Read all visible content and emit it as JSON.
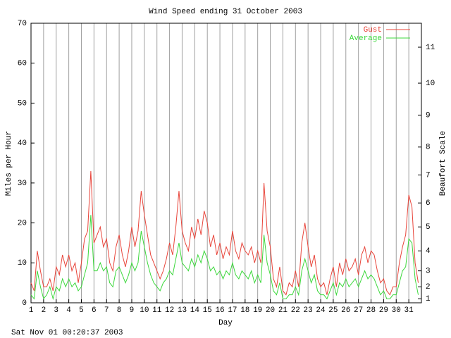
{
  "chart_data": {
    "type": "line",
    "title": "Wind Speed ending 31 October 2003",
    "xlabel": "Day",
    "ylabel": "Miles per Hour",
    "y2label": "Beaufort Scale",
    "footer": "Sat Nov 01 00:20:37 2003",
    "x": [
      1,
      1.25,
      1.5,
      1.75,
      2,
      2.25,
      2.5,
      2.75,
      3,
      3.25,
      3.5,
      3.75,
      4,
      4.25,
      4.5,
      4.75,
      5,
      5.25,
      5.5,
      5.75,
      6,
      6.25,
      6.5,
      6.75,
      7,
      7.25,
      7.5,
      7.75,
      8,
      8.25,
      8.5,
      8.75,
      9,
      9.25,
      9.5,
      9.75,
      10,
      10.25,
      10.5,
      10.75,
      11,
      11.25,
      11.5,
      11.75,
      12,
      12.25,
      12.5,
      12.75,
      13,
      13.25,
      13.5,
      13.75,
      14,
      14.25,
      14.5,
      14.75,
      15,
      15.25,
      15.5,
      15.75,
      16,
      16.25,
      16.5,
      16.75,
      17,
      17.25,
      17.5,
      17.75,
      18,
      18.25,
      18.5,
      18.75,
      19,
      19.25,
      19.5,
      19.75,
      20,
      20.25,
      20.5,
      20.75,
      21,
      21.25,
      21.5,
      21.75,
      22,
      22.25,
      22.5,
      22.75,
      23,
      23.25,
      23.5,
      23.75,
      24,
      24.25,
      24.5,
      24.75,
      25,
      25.25,
      25.5,
      25.75,
      26,
      26.25,
      26.5,
      26.75,
      27,
      27.25,
      27.5,
      27.75,
      28,
      28.25,
      28.5,
      28.75,
      29,
      29.25,
      29.5,
      29.75,
      30,
      30.25,
      30.5,
      30.75,
      31,
      31.25,
      31.5,
      31.75
    ],
    "series": [
      {
        "name": "Gust",
        "color": "#e8443a",
        "values": [
          5,
          3,
          13,
          8,
          4,
          4,
          6,
          3,
          9,
          7,
          12,
          9,
          12,
          8,
          10,
          5,
          10,
          16,
          18,
          33,
          15,
          17,
          19,
          14,
          16,
          10,
          8,
          14,
          17,
          12,
          9,
          13,
          19,
          14,
          18,
          28,
          22,
          17,
          12,
          10,
          8,
          6,
          8,
          11,
          15,
          12,
          19,
          28,
          18,
          15,
          13,
          19,
          16,
          21,
          17,
          23,
          20,
          14,
          17,
          12,
          15,
          11,
          14,
          12,
          18,
          13,
          11,
          15,
          13,
          12,
          14,
          10,
          13,
          10,
          30,
          18,
          14,
          6,
          4,
          9,
          3,
          2,
          5,
          4,
          8,
          4,
          15,
          20,
          14,
          9,
          12,
          6,
          4,
          5,
          2,
          6,
          9,
          4,
          10,
          7,
          11,
          8,
          9,
          11,
          7,
          12,
          14,
          10,
          13,
          12,
          8,
          5,
          6,
          3,
          2,
          4,
          4,
          10,
          14,
          17,
          27,
          24,
          10,
          5
        ]
      },
      {
        "name": "Average",
        "color": "#3cd83c",
        "values": [
          2,
          1,
          8,
          4,
          1,
          2,
          4,
          1,
          4,
          3,
          6,
          4,
          6,
          4,
          5,
          3,
          4,
          7,
          10,
          22,
          8,
          8,
          10,
          8,
          9,
          5,
          4,
          8,
          9,
          7,
          5,
          7,
          10,
          8,
          10,
          18,
          14,
          10,
          7,
          5,
          4,
          3,
          5,
          6,
          8,
          7,
          11,
          15,
          10,
          9,
          8,
          11,
          9,
          12,
          10,
          13,
          11,
          8,
          9,
          7,
          8,
          6,
          8,
          7,
          10,
          7,
          6,
          8,
          7,
          6,
          8,
          5,
          7,
          5,
          17,
          10,
          7,
          3,
          2,
          5,
          1,
          1,
          2,
          2,
          4,
          2,
          8,
          11,
          8,
          5,
          7,
          3,
          2,
          2,
          1,
          3,
          5,
          2,
          5,
          4,
          6,
          4,
          5,
          6,
          4,
          6,
          8,
          6,
          7,
          6,
          4,
          2,
          3,
          1,
          1,
          2,
          2,
          5,
          8,
          9,
          16,
          15,
          6,
          2
        ]
      }
    ],
    "xlim": [
      1,
      32
    ],
    "xticks": [
      1,
      2,
      3,
      4,
      5,
      6,
      7,
      8,
      9,
      10,
      11,
      12,
      13,
      14,
      15,
      16,
      17,
      18,
      19,
      20,
      21,
      22,
      23,
      24,
      25,
      26,
      27,
      28,
      29,
      30,
      31
    ],
    "ylim": [
      0,
      70
    ],
    "yticks": [
      0,
      10,
      20,
      30,
      40,
      50,
      60,
      70
    ],
    "y2lim": [
      0,
      70
    ],
    "y2ticks": [
      1,
      {
        "value": 4,
        "label": "2"
      },
      {
        "value": 8,
        "label": "3"
      },
      {
        "value": 13,
        "label": "4"
      },
      {
        "value": 19,
        "label": "5"
      },
      {
        "value": 25,
        "label": "6"
      },
      {
        "value": 32,
        "label": "7"
      },
      {
        "value": 39,
        "label": "8"
      },
      {
        "value": 47,
        "label": "9"
      },
      {
        "value": 55,
        "label": "10"
      },
      {
        "value": 64,
        "label": "11"
      }
    ],
    "grid": "x",
    "grid_color": "#a0a0a0",
    "legend": "top-right"
  }
}
